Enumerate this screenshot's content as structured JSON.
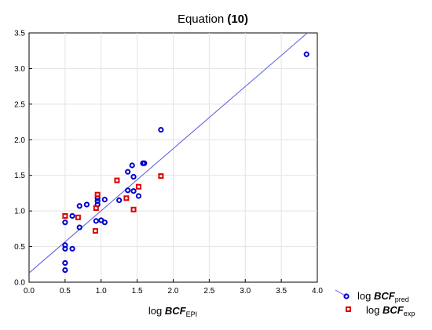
{
  "chart_data": {
    "type": "scatter",
    "title": {
      "prefix": "Equation ",
      "bold": "(10)"
    },
    "xlabel": {
      "prefix": "log ",
      "bold": "BCF",
      "sub": "EPI"
    },
    "ylabel": "",
    "xlim": [
      0.0,
      4.0
    ],
    "ylim": [
      0.0,
      3.5
    ],
    "x_ticks": [
      "0.0",
      "0.5",
      "1.0",
      "1.5",
      "2.0",
      "2.5",
      "3.0",
      "3.5",
      "4.0"
    ],
    "y_ticks": [
      "0.0",
      "0.5",
      "1.0",
      "1.5",
      "2.0",
      "2.5",
      "3.0",
      "3.5"
    ],
    "grid": true,
    "legend_position": "bottom-right",
    "regression_line": {
      "x": [
        0.0,
        4.0
      ],
      "y": [
        0.13,
        3.62
      ],
      "color": "#5a5ae0"
    },
    "series": [
      {
        "name_prefix": "log ",
        "name_bold": "BCF",
        "name_sub": "pred",
        "marker": "circle",
        "color": "#0000cc",
        "points": [
          [
            0.5,
            0.17
          ],
          [
            0.5,
            0.27
          ],
          [
            0.5,
            0.47
          ],
          [
            0.5,
            0.52
          ],
          [
            0.5,
            0.84
          ],
          [
            0.6,
            0.47
          ],
          [
            0.6,
            0.93
          ],
          [
            0.7,
            0.77
          ],
          [
            0.7,
            1.07
          ],
          [
            0.8,
            1.09
          ],
          [
            0.93,
            0.86
          ],
          [
            0.95,
            1.09
          ],
          [
            0.95,
            1.14
          ],
          [
            0.95,
            1.18
          ],
          [
            1.0,
            0.87
          ],
          [
            1.05,
            0.84
          ],
          [
            1.05,
            1.16
          ],
          [
            1.25,
            1.15
          ],
          [
            1.37,
            1.29
          ],
          [
            1.37,
            1.55
          ],
          [
            1.43,
            1.64
          ],
          [
            1.45,
            1.28
          ],
          [
            1.45,
            1.48
          ],
          [
            1.52,
            1.21
          ],
          [
            1.58,
            1.67
          ],
          [
            1.6,
            1.67
          ],
          [
            1.83,
            2.14
          ],
          [
            3.85,
            3.2
          ]
        ]
      },
      {
        "name_prefix": "log ",
        "name_bold": "BCF",
        "name_sub": "exp",
        "marker": "square",
        "color": "#dd0000",
        "points": [
          [
            0.5,
            0.93
          ],
          [
            0.68,
            0.91
          ],
          [
            0.92,
            0.72
          ],
          [
            0.93,
            1.04
          ],
          [
            0.95,
            1.23
          ],
          [
            1.22,
            1.43
          ],
          [
            1.35,
            1.18
          ],
          [
            1.45,
            1.02
          ],
          [
            1.52,
            1.34
          ],
          [
            1.83,
            1.49
          ]
        ]
      }
    ]
  }
}
